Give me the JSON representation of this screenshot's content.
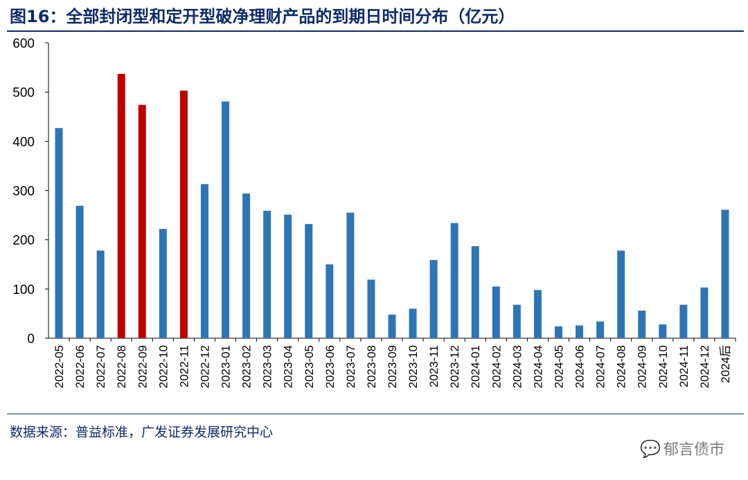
{
  "title": "图16：全部封闭型和定开型破净理财产品的到期日时间分布（亿元）",
  "source": "数据来源：普益标准，广发证券发展研究中心",
  "watermark": "郁言债市",
  "colors": {
    "default_bar": "#2e75b6",
    "highlight_bar": "#c00000",
    "title": "#0d2a6b"
  },
  "chart_data": {
    "type": "bar",
    "title": "全部封闭型和定开型破净理财产品的到期日时间分布（亿元）",
    "xlabel": "",
    "ylabel": "",
    "ylim": [
      0,
      600
    ],
    "yticks": [
      0,
      100,
      200,
      300,
      400,
      500,
      600
    ],
    "grid": false,
    "categories": [
      "2022-05",
      "2022-06",
      "2022-07",
      "2022-08",
      "2022-09",
      "2022-10",
      "2022-11",
      "2022-12",
      "2023-01",
      "2023-02",
      "2023-03",
      "2023-04",
      "2023-05",
      "2023-06",
      "2023-07",
      "2023-08",
      "2023-09",
      "2023-10",
      "2023-11",
      "2023-12",
      "2024-01",
      "2024-02",
      "2024-03",
      "2024-04",
      "2024-05",
      "2024-06",
      "2024-07",
      "2024-08",
      "2024-09",
      "2024-10",
      "2024-11",
      "2024-12",
      "2024后"
    ],
    "values": [
      427,
      269,
      178,
      537,
      474,
      222,
      503,
      313,
      481,
      294,
      259,
      251,
      232,
      150,
      255,
      119,
      48,
      60,
      159,
      234,
      187,
      105,
      68,
      98,
      24,
      26,
      34,
      178,
      56,
      28,
      68,
      103,
      261
    ],
    "highlighted": [
      "2022-08",
      "2022-09",
      "2022-11"
    ]
  }
}
